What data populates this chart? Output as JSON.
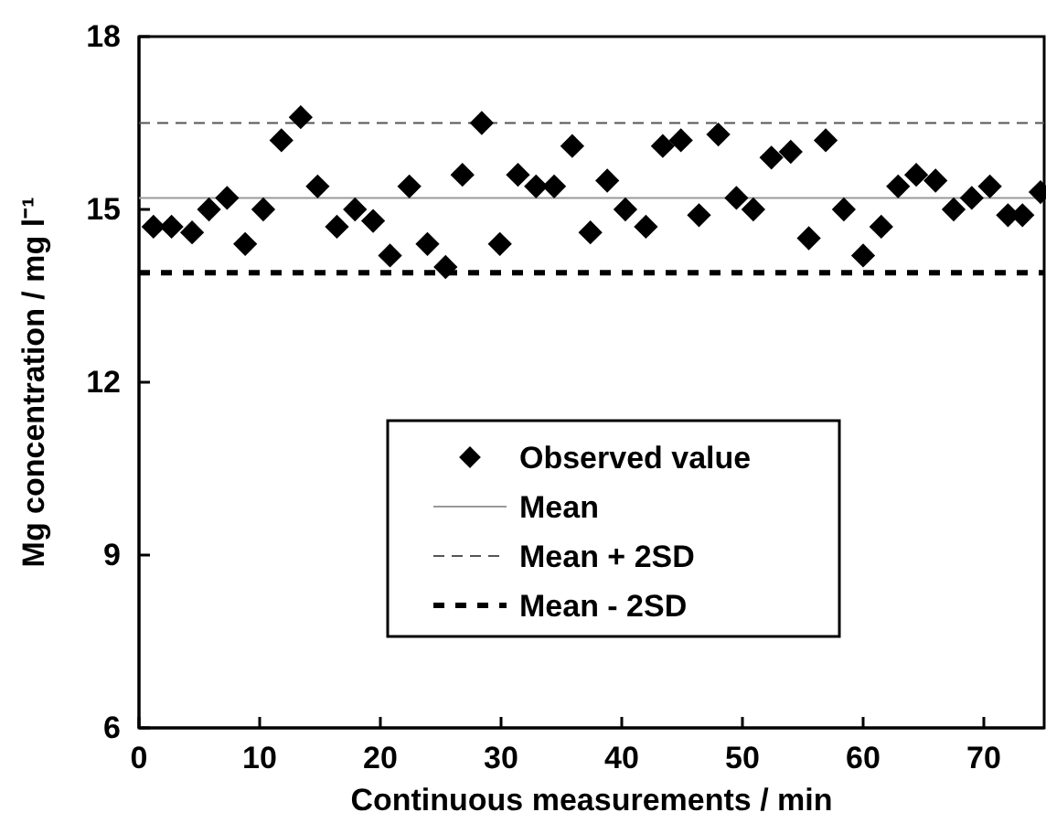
{
  "chart_data": {
    "type": "scatter",
    "xlabel": "Continuous measurements / min",
    "ylabel": "Mg concentration / mg l⁻¹",
    "xlim": [
      0,
      75
    ],
    "xticks": [
      0,
      10,
      20,
      30,
      40,
      50,
      60,
      70
    ],
    "ylim": [
      6,
      18
    ],
    "yticks": [
      6,
      9,
      12,
      15,
      18
    ],
    "grid": false,
    "legend": "bottom",
    "marker": "diamond",
    "series": [
      {
        "name": "Observed value",
        "color": "#000000",
        "x": [
          1.2,
          2.7,
          4.4,
          5.8,
          7.3,
          8.8,
          10.3,
          11.8,
          13.4,
          14.8,
          16.4,
          17.9,
          19.4,
          20.8,
          22.4,
          23.9,
          25.4,
          26.8,
          28.4,
          29.9,
          31.4,
          32.9,
          34.4,
          35.9,
          37.4,
          38.8,
          40.3,
          42.0,
          43.4,
          44.9,
          46.4,
          48.0,
          49.5,
          50.9,
          52.4,
          54.0,
          55.5,
          56.9,
          58.4,
          60.0,
          61.5,
          62.9,
          64.4,
          66.0,
          67.5,
          69.0,
          70.5,
          72.0,
          73.2,
          74.7
        ],
        "values": [
          14.7,
          14.7,
          14.6,
          15.0,
          15.2,
          14.4,
          15.0,
          16.2,
          16.6,
          15.4,
          14.7,
          15.0,
          14.8,
          14.2,
          15.4,
          14.4,
          14.0,
          15.6,
          16.5,
          14.4,
          15.6,
          15.4,
          15.4,
          16.1,
          14.6,
          15.5,
          15.0,
          14.7,
          16.1,
          16.2,
          14.9,
          16.3,
          15.2,
          15.0,
          15.9,
          16.0,
          14.5,
          16.2,
          15.0,
          14.2,
          14.7,
          15.4,
          15.6,
          15.5,
          15.0,
          15.2,
          15.4,
          14.9,
          14.9,
          15.3
        ]
      }
    ],
    "ref_lines": [
      {
        "axis": "y",
        "value": 15.2,
        "label": "Mean",
        "color": "#999999",
        "line_style": "solid"
      },
      {
        "axis": "y",
        "value": 16.5,
        "label": "Mean + 2SD",
        "color": "#555555",
        "line_style": "dashed"
      },
      {
        "axis": "y",
        "value": 13.9,
        "label": "Mean - 2SD",
        "color": "#000000",
        "line_style": "dotted"
      }
    ]
  }
}
